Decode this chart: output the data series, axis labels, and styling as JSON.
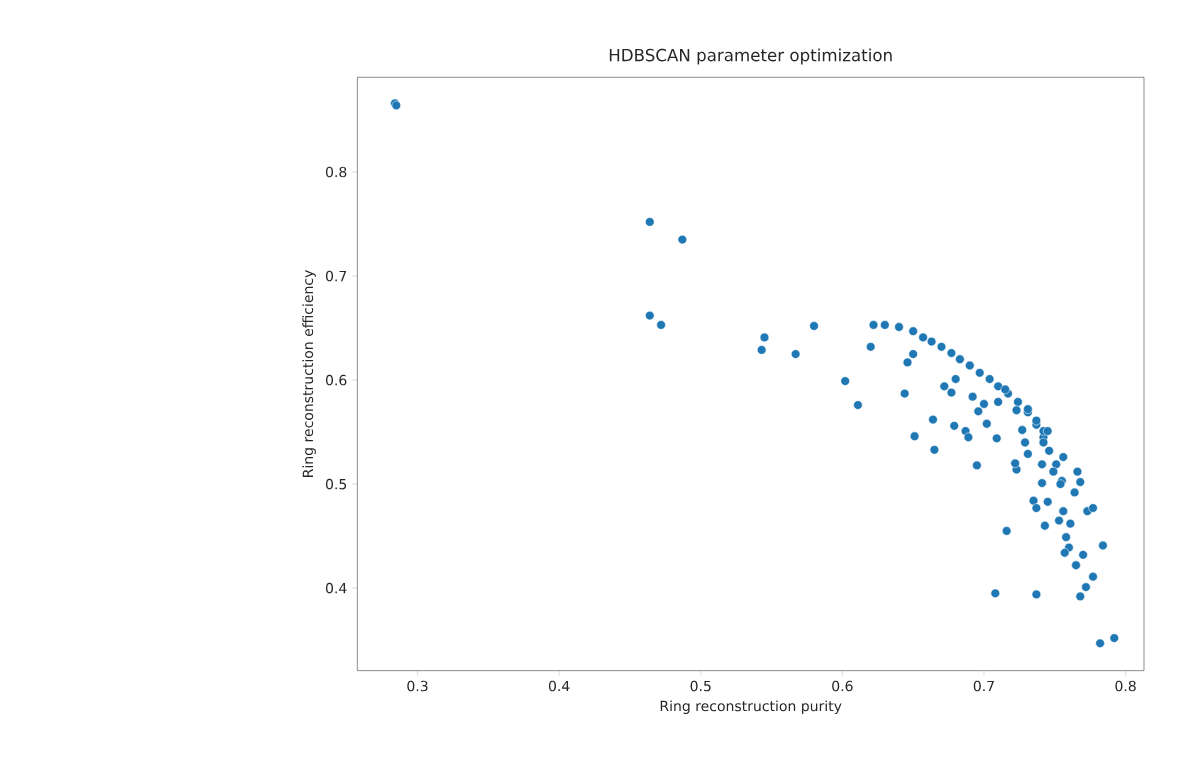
{
  "chart_data": {
    "type": "scatter",
    "title": "HDBSCAN parameter optimization",
    "xlabel": "Ring reconstruction purity",
    "ylabel": "Ring reconstruction efficiency",
    "color": "#1f77b4",
    "marker": "circle",
    "x": [
      0.284,
      0.285,
      0.464,
      0.487,
      0.464,
      0.472,
      0.545,
      0.543,
      0.567,
      0.58,
      0.602,
      0.611,
      0.622,
      0.62,
      0.63,
      0.64,
      0.65,
      0.657,
      0.663,
      0.67,
      0.677,
      0.683,
      0.69,
      0.697,
      0.704,
      0.71,
      0.717,
      0.724,
      0.731,
      0.737,
      0.742,
      0.746,
      0.751,
      0.755,
      0.65,
      0.646,
      0.644,
      0.664,
      0.651,
      0.665,
      0.679,
      0.672,
      0.677,
      0.68,
      0.687,
      0.689,
      0.695,
      0.702,
      0.709,
      0.692,
      0.7,
      0.71,
      0.696,
      0.715,
      0.723,
      0.731,
      0.737,
      0.727,
      0.729,
      0.731,
      0.723,
      0.722,
      0.742,
      0.745,
      0.742,
      0.741,
      0.749,
      0.756,
      0.741,
      0.754,
      0.766,
      0.768,
      0.764,
      0.735,
      0.737,
      0.745,
      0.756,
      0.753,
      0.761,
      0.743,
      0.773,
      0.777,
      0.716,
      0.758,
      0.76,
      0.757,
      0.77,
      0.765,
      0.784,
      0.777,
      0.772,
      0.768,
      0.708,
      0.737,
      0.782,
      0.792
    ],
    "values": [
      0.866,
      0.864,
      0.752,
      0.735,
      0.662,
      0.653,
      0.641,
      0.629,
      0.625,
      0.652,
      0.599,
      0.576,
      0.653,
      0.632,
      0.653,
      0.651,
      0.647,
      0.641,
      0.637,
      0.632,
      0.626,
      0.62,
      0.614,
      0.607,
      0.601,
      0.594,
      0.587,
      0.579,
      0.569,
      0.557,
      0.545,
      0.532,
      0.519,
      0.503,
      0.625,
      0.617,
      0.587,
      0.562,
      0.546,
      0.533,
      0.556,
      0.594,
      0.588,
      0.601,
      0.551,
      0.545,
      0.518,
      0.558,
      0.544,
      0.584,
      0.577,
      0.579,
      0.57,
      0.591,
      0.571,
      0.572,
      0.561,
      0.552,
      0.54,
      0.529,
      0.514,
      0.52,
      0.551,
      0.551,
      0.54,
      0.519,
      0.512,
      0.526,
      0.501,
      0.5,
      0.512,
      0.502,
      0.492,
      0.484,
      0.477,
      0.483,
      0.474,
      0.465,
      0.462,
      0.46,
      0.474,
      0.477,
      0.455,
      0.449,
      0.439,
      0.434,
      0.432,
      0.422,
      0.441,
      0.411,
      0.401,
      0.392,
      0.395,
      0.394,
      0.347,
      0.352
    ],
    "xlim": [
      0.2575,
      0.813
    ],
    "ylim": [
      0.3207,
      0.891
    ],
    "xticks": [
      0.3,
      0.4,
      0.5,
      0.6,
      0.7,
      0.8
    ],
    "yticks": [
      0.4,
      0.5,
      0.6,
      0.7,
      0.8
    ]
  }
}
